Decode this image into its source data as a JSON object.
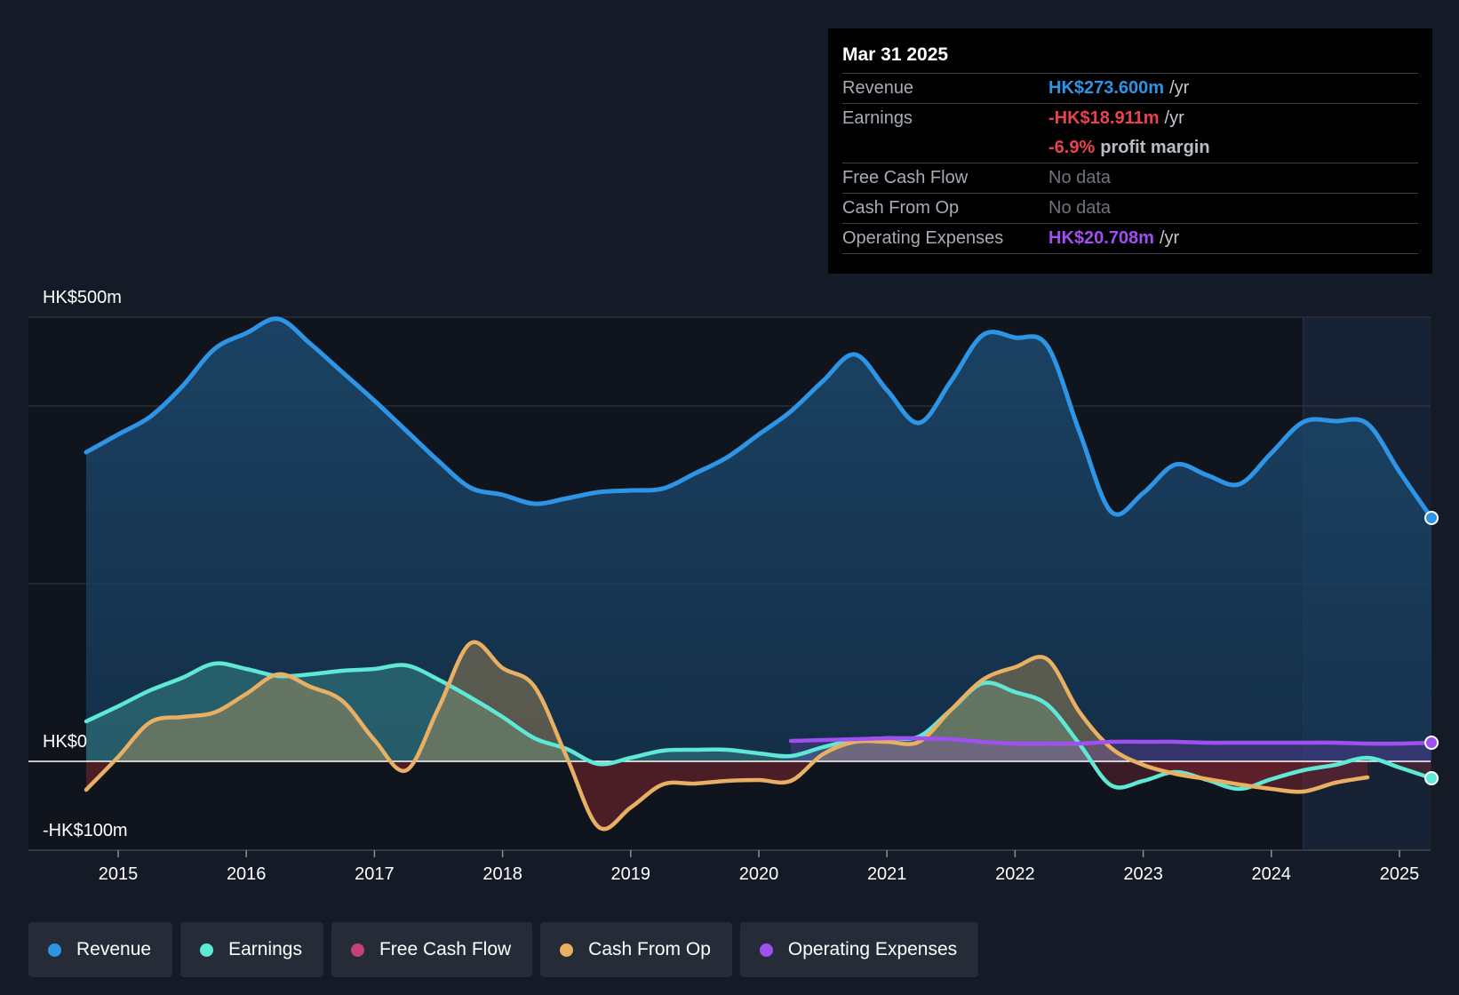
{
  "tooltip": {
    "date": "Mar 31 2025",
    "rows": {
      "revenue": {
        "label": "Revenue",
        "value": "HK$273.600m",
        "unit": "/yr"
      },
      "earnings": {
        "label": "Earnings",
        "value": "-HK$18.911m",
        "unit": "/yr"
      },
      "margin": {
        "value": "-6.9%",
        "unit": "profit margin"
      },
      "fcf": {
        "label": "Free Cash Flow",
        "value": "No data"
      },
      "cfo": {
        "label": "Cash From Op",
        "value": "No data"
      },
      "opex": {
        "label": "Operating Expenses",
        "value": "HK$20.708m",
        "unit": "/yr"
      }
    }
  },
  "legend": [
    {
      "label": "Revenue",
      "color": "#2e94e5"
    },
    {
      "label": "Earnings",
      "color": "#5ee8d6"
    },
    {
      "label": "Free Cash Flow",
      "color": "#c4427a"
    },
    {
      "label": "Cash From Op",
      "color": "#e9b064"
    },
    {
      "label": "Operating Expenses",
      "color": "#a04ff0"
    }
  ],
  "chart_data": {
    "type": "line",
    "title": "",
    "y_labels": [
      "HK$500m",
      "HK$0",
      "-HK$100m"
    ],
    "ylim": [
      -100,
      500
    ],
    "xlim": [
      2014.5,
      2025.25
    ],
    "x_ticks": [
      "2015",
      "2016",
      "2017",
      "2018",
      "2019",
      "2020",
      "2021",
      "2022",
      "2023",
      "2024",
      "2025"
    ],
    "highlight_from": 2024.25,
    "colors": {
      "revenue": "#2e94e5",
      "earnings": "#5ee8d6",
      "fcf": "#c4427a",
      "cfo": "#e9b064",
      "opex": "#a04ff0"
    },
    "series": [
      {
        "name": "Revenue",
        "key": "revenue",
        "points": [
          [
            2014.75,
            348
          ],
          [
            2015.0,
            368
          ],
          [
            2015.25,
            388
          ],
          [
            2015.5,
            422
          ],
          [
            2015.75,
            464
          ],
          [
            2016.0,
            482
          ],
          [
            2016.25,
            498
          ],
          [
            2016.5,
            470
          ],
          [
            2016.75,
            438
          ],
          [
            2017.0,
            406
          ],
          [
            2017.25,
            372
          ],
          [
            2017.5,
            338
          ],
          [
            2017.75,
            308
          ],
          [
            2018.0,
            300
          ],
          [
            2018.25,
            290
          ],
          [
            2018.5,
            296
          ],
          [
            2018.75,
            303
          ],
          [
            2019.0,
            305
          ],
          [
            2019.25,
            307
          ],
          [
            2019.5,
            324
          ],
          [
            2019.75,
            342
          ],
          [
            2020.0,
            368
          ],
          [
            2020.25,
            394
          ],
          [
            2020.5,
            428
          ],
          [
            2020.75,
            458
          ],
          [
            2021.0,
            418
          ],
          [
            2021.25,
            381
          ],
          [
            2021.5,
            428
          ],
          [
            2021.75,
            480
          ],
          [
            2022.0,
            477
          ],
          [
            2022.25,
            468
          ],
          [
            2022.5,
            372
          ],
          [
            2022.75,
            281
          ],
          [
            2023.0,
            302
          ],
          [
            2023.25,
            334
          ],
          [
            2023.5,
            322
          ],
          [
            2023.75,
            312
          ],
          [
            2024.0,
            347
          ],
          [
            2024.25,
            382
          ],
          [
            2024.5,
            383
          ],
          [
            2024.75,
            380
          ],
          [
            2025.0,
            326
          ],
          [
            2025.25,
            274
          ]
        ]
      },
      {
        "name": "Earnings",
        "key": "earnings",
        "points": [
          [
            2014.75,
            45
          ],
          [
            2015.0,
            62
          ],
          [
            2015.25,
            80
          ],
          [
            2015.5,
            94
          ],
          [
            2015.75,
            110
          ],
          [
            2016.0,
            104
          ],
          [
            2016.25,
            96
          ],
          [
            2016.5,
            98
          ],
          [
            2016.75,
            102
          ],
          [
            2017.0,
            104
          ],
          [
            2017.25,
            108
          ],
          [
            2017.5,
            92
          ],
          [
            2017.75,
            72
          ],
          [
            2018.0,
            50
          ],
          [
            2018.25,
            26
          ],
          [
            2018.5,
            14
          ],
          [
            2018.75,
            -3
          ],
          [
            2019.0,
            4
          ],
          [
            2019.25,
            12
          ],
          [
            2019.5,
            13
          ],
          [
            2019.75,
            13
          ],
          [
            2020.0,
            9
          ],
          [
            2020.25,
            6
          ],
          [
            2020.5,
            16
          ],
          [
            2020.75,
            24
          ],
          [
            2021.0,
            26
          ],
          [
            2021.25,
            28
          ],
          [
            2021.5,
            58
          ],
          [
            2021.75,
            88
          ],
          [
            2022.0,
            78
          ],
          [
            2022.25,
            64
          ],
          [
            2022.5,
            20
          ],
          [
            2022.75,
            -27
          ],
          [
            2023.0,
            -22
          ],
          [
            2023.25,
            -12
          ],
          [
            2023.5,
            -21
          ],
          [
            2023.75,
            -31
          ],
          [
            2024.0,
            -20
          ],
          [
            2024.25,
            -10
          ],
          [
            2024.5,
            -4
          ],
          [
            2024.75,
            4
          ],
          [
            2025.0,
            -7
          ],
          [
            2025.25,
            -19
          ]
        ]
      },
      {
        "name": "Cash From Op",
        "key": "cfo",
        "points": [
          [
            2014.75,
            -32
          ],
          [
            2015.0,
            5
          ],
          [
            2015.25,
            44
          ],
          [
            2015.5,
            50
          ],
          [
            2015.75,
            55
          ],
          [
            2016.0,
            76
          ],
          [
            2016.25,
            98
          ],
          [
            2016.5,
            84
          ],
          [
            2016.75,
            68
          ],
          [
            2017.0,
            24
          ],
          [
            2017.25,
            -10
          ],
          [
            2017.5,
            60
          ],
          [
            2017.75,
            133
          ],
          [
            2018.0,
            105
          ],
          [
            2018.25,
            84
          ],
          [
            2018.5,
            5
          ],
          [
            2018.75,
            -74
          ],
          [
            2019.0,
            -52
          ],
          [
            2019.25,
            -26
          ],
          [
            2019.5,
            -25
          ],
          [
            2019.75,
            -22
          ],
          [
            2020.0,
            -21
          ],
          [
            2020.25,
            -22
          ],
          [
            2020.5,
            8
          ],
          [
            2020.75,
            22
          ],
          [
            2021.0,
            22
          ],
          [
            2021.25,
            22
          ],
          [
            2021.5,
            58
          ],
          [
            2021.75,
            92
          ],
          [
            2022.0,
            106
          ],
          [
            2022.25,
            115
          ],
          [
            2022.5,
            56
          ],
          [
            2022.75,
            15
          ],
          [
            2023.0,
            -4
          ],
          [
            2023.25,
            -14
          ],
          [
            2023.5,
            -20
          ],
          [
            2023.75,
            -26
          ],
          [
            2024.0,
            -31
          ],
          [
            2024.25,
            -34
          ],
          [
            2024.5,
            -24
          ],
          [
            2024.75,
            -18
          ]
        ]
      },
      {
        "name": "Operating Expenses",
        "key": "opex",
        "points": [
          [
            2020.25,
            23
          ],
          [
            2020.5,
            24
          ],
          [
            2020.75,
            25
          ],
          [
            2021.0,
            26
          ],
          [
            2021.25,
            26
          ],
          [
            2021.5,
            25
          ],
          [
            2021.75,
            22
          ],
          [
            2022.0,
            20
          ],
          [
            2022.25,
            20
          ],
          [
            2022.5,
            20
          ],
          [
            2022.75,
            22
          ],
          [
            2023.0,
            22
          ],
          [
            2023.25,
            22
          ],
          [
            2023.5,
            21
          ],
          [
            2023.75,
            21
          ],
          [
            2024.0,
            21
          ],
          [
            2024.25,
            21
          ],
          [
            2024.5,
            21
          ],
          [
            2024.75,
            20
          ],
          [
            2025.0,
            20
          ],
          [
            2025.25,
            21
          ]
        ]
      }
    ]
  }
}
